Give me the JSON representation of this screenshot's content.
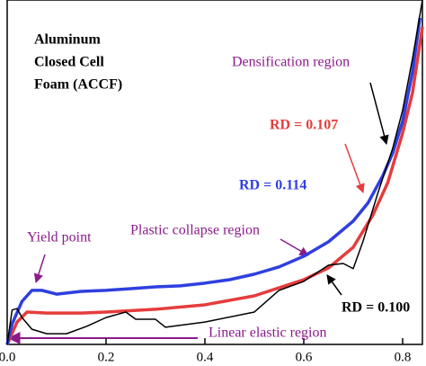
{
  "chart_data": {
    "type": "line",
    "title_lines": [
      "Aluminum",
      "Closed Cell",
      "Foam (ACCF)"
    ],
    "annotations": [
      "Yield point",
      "Plastic collapse region",
      "Linear elastic region",
      "Densification region"
    ],
    "xlim": [
      0,
      0.84
    ],
    "ylim": [
      0,
      10
    ],
    "xticks": [
      {
        "value": 0,
        "label": "0.0"
      },
      0.2,
      0.4,
      0.6,
      0.8
    ],
    "series": [
      {
        "name": "RD = 0.107",
        "color": "#e63c3c",
        "x": [
          0,
          0.02,
          0.04,
          0.08,
          0.15,
          0.2,
          0.3,
          0.4,
          0.5,
          0.6,
          0.65,
          0.7,
          0.74,
          0.77,
          0.8,
          0.82,
          0.84
        ],
        "values": [
          0,
          0.65,
          0.94,
          0.91,
          0.91,
          0.94,
          1.02,
          1.15,
          1.41,
          1.88,
          2.22,
          2.82,
          3.76,
          4.7,
          6.14,
          7.31,
          9.22
        ]
      },
      {
        "name": "RD = 0.114",
        "color": "#2f3fe0",
        "x": [
          0,
          0.01,
          0.03,
          0.05,
          0.07,
          0.1,
          0.15,
          0.2,
          0.25,
          0.3,
          0.35,
          0.4,
          0.45,
          0.5,
          0.55,
          0.6,
          0.65,
          0.7,
          0.73,
          0.76,
          0.78,
          0.8,
          0.82,
          0.835
        ],
        "values": [
          0,
          0.6,
          1.25,
          1.57,
          1.57,
          1.46,
          1.54,
          1.57,
          1.62,
          1.67,
          1.7,
          1.78,
          1.88,
          2.04,
          2.25,
          2.56,
          2.98,
          3.58,
          4.11,
          4.9,
          5.56,
          6.48,
          7.91,
          9.48
        ]
      },
      {
        "name": "RD = 0.100",
        "color": "#000000",
        "x": [
          0,
          0.01,
          0.02,
          0.03,
          0.05,
          0.08,
          0.12,
          0.16,
          0.2,
          0.24,
          0.26,
          0.3,
          0.32,
          0.4,
          0.5,
          0.55,
          0.6,
          0.65,
          0.68,
          0.7,
          0.72,
          0.75,
          0.78,
          0.8,
          0.82,
          0.84
        ],
        "values": [
          0,
          1.0,
          1.04,
          0.78,
          0.44,
          0.31,
          0.31,
          0.52,
          0.78,
          0.94,
          0.73,
          0.73,
          0.5,
          0.65,
          0.94,
          1.57,
          1.83,
          2.3,
          2.35,
          2.2,
          3.0,
          4.4,
          5.7,
          6.8,
          8.3,
          10
        ]
      }
    ]
  }
}
